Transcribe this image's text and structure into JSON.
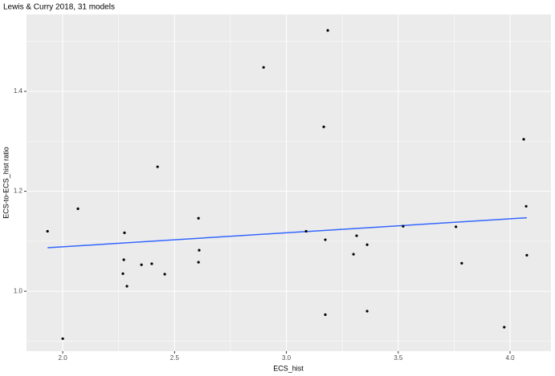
{
  "chart_data": {
    "type": "scatter",
    "title": "Lewis & Curry 2018, 31 models",
    "xlabel": "ECS_hist",
    "ylabel": "ECS-to-ECS_hist ratio",
    "x": [
      1.932,
      2.0,
      2.068,
      2.276,
      2.273,
      2.269,
      2.287,
      2.352,
      2.398,
      2.424,
      2.456,
      2.607,
      2.61,
      2.607,
      2.898,
      3.088,
      3.185,
      3.167,
      3.174,
      3.174,
      3.314,
      3.3,
      3.361,
      3.361,
      3.522,
      3.758,
      3.784,
      3.974,
      4.061,
      4.072,
      4.075
    ],
    "values": [
      1.12,
      0.905,
      1.165,
      1.117,
      1.063,
      1.035,
      1.01,
      1.053,
      1.055,
      1.249,
      1.034,
      1.146,
      1.082,
      1.058,
      1.448,
      1.12,
      1.522,
      1.329,
      1.103,
      0.953,
      1.111,
      1.074,
      1.093,
      0.96,
      1.13,
      1.129,
      1.056,
      0.928,
      1.304,
      1.17,
      1.072
    ],
    "color": "#000000",
    "fit": {
      "x": [
        1.932,
        4.075
      ],
      "values": [
        1.087,
        1.147
      ],
      "color": "#3366FF"
    },
    "xlim": [
      1.838,
      4.183
    ],
    "ylim": [
      0.88,
      1.554
    ],
    "xticks": [
      {
        "value": 2,
        "label": "2.0"
      },
      2.5,
      {
        "value": 3,
        "label": "3.0"
      },
      3.5,
      {
        "value": 4,
        "label": "4.0"
      }
    ],
    "yticks": [
      {
        "value": 1,
        "label": "1.0"
      },
      1.2,
      1.4
    ],
    "x_minor_breaks": [
      2.25,
      2.75,
      3.25,
      3.75
    ],
    "y_minor_breaks": [
      0.9,
      1.1,
      1.3,
      1.5
    ],
    "grid": true
  }
}
